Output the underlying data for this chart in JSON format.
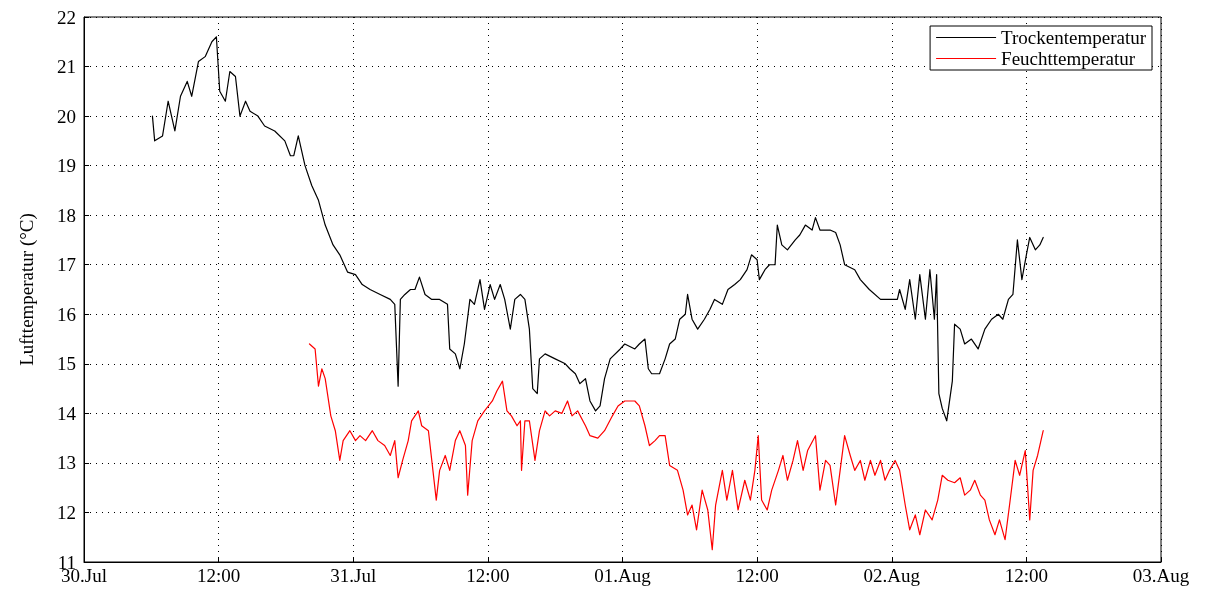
{
  "chart_data": {
    "type": "line",
    "ylabel": "Lufttemperatur (°C)",
    "xlim": [
      "--07-30T00:00",
      "--08-03T00:00"
    ],
    "ylim": [
      11,
      22
    ],
    "xticks": [
      {
        "value": "--07-30T00:00",
        "label": "30.Jul"
      },
      {
        "value": "--07-30T12:00",
        "label": "12:00"
      },
      {
        "value": "--07-31T00:00",
        "label": "31.Jul"
      },
      {
        "value": "--07-31T12:00",
        "label": "12:00"
      },
      {
        "value": "--08-01T00:00",
        "label": "01.Aug"
      },
      {
        "value": "--08-01T12:00",
        "label": "12:00"
      },
      {
        "value": "--08-02T00:00",
        "label": "02.Aug"
      },
      {
        "value": "--08-02T12:00",
        "label": "12:00"
      },
      {
        "value": "--08-03T00:00",
        "label": "03.Aug"
      }
    ],
    "yticks": [
      11,
      12,
      13,
      14,
      15,
      16,
      17,
      18,
      19,
      20,
      21,
      22
    ],
    "grid": true,
    "legend": "top right",
    "line_style": "solid",
    "marker": "none",
    "series": [
      {
        "name": "Trockentemperatur",
        "color": "#000000",
        "x": [
          "--07-30T06:06",
          "--07-30T06:18",
          "--07-30T07:00",
          "--07-30T07:30",
          "--07-30T08:06",
          "--07-30T08:36",
          "--07-30T09:12",
          "--07-30T09:36",
          "--07-30T10:12",
          "--07-30T10:48",
          "--07-30T11:24",
          "--07-30T11:48",
          "--07-30T12:06",
          "--07-30T12:36",
          "--07-30T13:00",
          "--07-30T13:30",
          "--07-30T13:54",
          "--07-30T14:24",
          "--07-30T14:48",
          "--07-30T15:30",
          "--07-30T16:06",
          "--07-30T17:00",
          "--07-30T17:54",
          "--07-30T18:24",
          "--07-30T18:42",
          "--07-30T19:06",
          "--07-30T19:42",
          "--07-30T20:18",
          "--07-30T20:54",
          "--07-30T21:30",
          "--07-30T22:12",
          "--07-30T22:48",
          "--07-30T23:30",
          "--07-31T00:12",
          "--07-31T00:48",
          "--07-31T01:30",
          "--07-31T02:24",
          "--07-31T03:18",
          "--07-31T03:42",
          "--07-31T04:00",
          "--07-31T04:12",
          "--07-31T04:36",
          "--07-31T05:06",
          "--07-31T05:30",
          "--07-31T05:54",
          "--07-31T06:24",
          "--07-31T07:00",
          "--07-31T07:42",
          "--07-31T08:24",
          "--07-31T08:36",
          "--07-31T09:06",
          "--07-31T09:30",
          "--07-31T09:54",
          "--07-31T10:24",
          "--07-31T10:48",
          "--07-31T11:18",
          "--07-31T11:42",
          "--07-31T12:12",
          "--07-31T12:36",
          "--07-31T13:06",
          "--07-31T13:30",
          "--07-31T14:00",
          "--07-31T14:24",
          "--07-31T14:54",
          "--07-31T15:18",
          "--07-31T15:42",
          "--07-31T16:00",
          "--07-31T16:24",
          "--07-31T16:36",
          "--07-31T17:06",
          "--07-31T18:00",
          "--07-31T18:54",
          "--07-31T19:18",
          "--07-31T19:48",
          "--07-31T20:12",
          "--07-31T20:42",
          "--07-31T21:06",
          "--07-31T21:36",
          "--07-31T22:00",
          "--07-31T22:24",
          "--07-31T22:54",
          "--07-31T23:48",
          "--08-01T00:12",
          "--08-01T01:06",
          "--08-01T01:30",
          "--08-01T02:00",
          "--08-01T02:18",
          "--08-01T02:36",
          "--08-01T03:18",
          "--08-01T03:48",
          "--08-01T04:12",
          "--08-01T04:42",
          "--08-01T05:06",
          "--08-01T05:36",
          "--08-01T05:48",
          "--08-01T06:12",
          "--08-01T06:42",
          "--08-01T07:18",
          "--08-01T07:48",
          "--08-01T08:12",
          "--08-01T08:54",
          "--08-01T09:24",
          "--08-01T10:00",
          "--08-01T10:30",
          "--08-01T11:06",
          "--08-01T11:30",
          "--08-01T12:00",
          "--08-01T12:12",
          "--08-01T12:42",
          "--08-01T13:06",
          "--08-01T13:36",
          "--08-01T13:48",
          "--08-01T14:12",
          "--08-01T14:42",
          "--08-01T15:24",
          "--08-01T15:48",
          "--08-01T16:18",
          "--08-01T16:54",
          "--08-01T17:12",
          "--08-01T17:36",
          "--08-01T18:30",
          "--08-01T19:00",
          "--08-01T19:24",
          "--08-01T19:48",
          "--08-01T20:42",
          "--08-01T21:12",
          "--08-01T22:00",
          "--08-01T23:00",
          "--08-01T23:48",
          "--08-02T00:30",
          "--08-02T00:42",
          "--08-02T01:12",
          "--08-02T01:36",
          "--08-02T02:06",
          "--08-02T02:30",
          "--08-02T03:00",
          "--08-02T03:24",
          "--08-02T03:48",
          "--08-02T04:00",
          "--08-02T04:12",
          "--08-02T04:30",
          "--08-02T04:54",
          "--08-02T05:24",
          "--08-02T05:36",
          "--08-02T06:06",
          "--08-02T06:30",
          "--08-02T07:06",
          "--08-02T07:42",
          "--08-02T08:18",
          "--08-02T08:54",
          "--08-02T09:30",
          "--08-02T09:54",
          "--08-02T10:24",
          "--08-02T10:48",
          "--08-02T11:12",
          "--08-02T11:36",
          "--08-02T12:00",
          "--08-02T12:18",
          "--08-02T12:48",
          "--08-02T13:12",
          "--08-02T13:30"
        ],
        "values": [
          20.0,
          19.5,
          19.6,
          20.3,
          19.7,
          20.4,
          20.7,
          20.4,
          21.1,
          21.2,
          21.5,
          21.6,
          20.5,
          20.3,
          20.9,
          20.8,
          20.0,
          20.3,
          20.1,
          20.0,
          19.8,
          19.7,
          19.5,
          19.2,
          19.2,
          19.6,
          19.0,
          18.6,
          18.3,
          17.8,
          17.4,
          17.2,
          16.85,
          16.8,
          16.6,
          16.5,
          16.4,
          16.3,
          16.2,
          14.55,
          16.3,
          16.4,
          16.5,
          16.5,
          16.75,
          16.4,
          16.3,
          16.3,
          16.2,
          15.3,
          15.2,
          14.9,
          15.4,
          16.3,
          16.2,
          16.7,
          16.1,
          16.6,
          16.3,
          16.6,
          16.3,
          15.7,
          16.3,
          16.4,
          16.3,
          15.7,
          14.5,
          14.4,
          15.1,
          15.2,
          15.1,
          15.0,
          14.9,
          14.8,
          14.6,
          14.7,
          14.25,
          14.05,
          14.15,
          14.7,
          15.1,
          15.3,
          15.4,
          15.3,
          15.4,
          15.5,
          14.9,
          14.8,
          14.8,
          15.1,
          15.4,
          15.5,
          15.9,
          16.0,
          16.4,
          15.9,
          15.7,
          15.9,
          16.1,
          16.3,
          16.2,
          16.5,
          16.6,
          16.7,
          16.9,
          17.2,
          17.1,
          16.7,
          16.9,
          17.0,
          17.0,
          17.8,
          17.4,
          17.3,
          17.5,
          17.6,
          17.8,
          17.7,
          17.95,
          17.7,
          17.7,
          17.65,
          17.4,
          17.0,
          16.9,
          16.7,
          16.5,
          16.3,
          16.3,
          16.3,
          16.5,
          16.1,
          16.7,
          15.9,
          16.8,
          15.9,
          16.9,
          15.9,
          16.8,
          14.4,
          14.1,
          13.85,
          14.65,
          15.8,
          15.7,
          15.4,
          15.5,
          15.3,
          15.7,
          15.9,
          16.0,
          15.9,
          16.3,
          16.4,
          17.5,
          16.7,
          17.2,
          17.55,
          17.3,
          17.4,
          17.55
        ]
      },
      {
        "name": "Feuchttemperatur",
        "color": "#ff0000",
        "x": [
          "--07-30T20:06",
          "--07-30T20:36",
          "--07-30T20:54",
          "--07-30T21:12",
          "--07-30T21:30",
          "--07-30T22:00",
          "--07-30T22:24",
          "--07-30T22:48",
          "--07-30T23:06",
          "--07-30T23:42",
          "--07-31T00:12",
          "--07-31T00:36",
          "--07-31T01:06",
          "--07-31T01:42",
          "--07-31T02:12",
          "--07-31T02:48",
          "--07-31T03:18",
          "--07-31T03:42",
          "--07-31T04:00",
          "--07-31T04:24",
          "--07-31T04:54",
          "--07-31T05:12",
          "--07-31T05:48",
          "--07-31T06:06",
          "--07-31T06:42",
          "--07-31T07:00",
          "--07-31T07:24",
          "--07-31T07:42",
          "--07-31T08:12",
          "--07-31T08:36",
          "--07-31T09:06",
          "--07-31T09:30",
          "--07-31T10:00",
          "--07-31T10:12",
          "--07-31T10:36",
          "--07-31T11:06",
          "--07-31T11:42",
          "--07-31T12:24",
          "--07-31T12:48",
          "--07-31T13:18",
          "--07-31T13:42",
          "--07-31T14:06",
          "--07-31T14:36",
          "--07-31T14:54",
          "--07-31T15:00",
          "--07-31T15:18",
          "--07-31T15:42",
          "--07-31T16:12",
          "--07-31T16:36",
          "--07-31T17:06",
          "--07-31T17:30",
          "--07-31T18:00",
          "--07-31T18:36",
          "--07-31T19:06",
          "--07-31T19:30",
          "--07-31T20:00",
          "--07-31T20:42",
          "--07-31T21:06",
          "--07-31T21:48",
          "--07-31T22:24",
          "--07-31T23:06",
          "--07-31T23:36",
          "--08-01T00:12",
          "--08-01T01:06",
          "--08-01T01:30",
          "--08-01T02:00",
          "--08-01T02:24",
          "--08-01T02:54",
          "--08-01T03:18",
          "--08-01T03:48",
          "--08-01T04:12",
          "--08-01T04:54",
          "--08-01T05:24",
          "--08-01T05:48",
          "--08-01T06:12",
          "--08-01T06:36",
          "--08-01T07:06",
          "--08-01T07:36",
          "--08-01T08:00",
          "--08-01T08:18",
          "--08-01T08:54",
          "--08-01T09:18",
          "--08-01T09:48",
          "--08-01T10:18",
          "--08-01T10:54",
          "--08-01T11:24",
          "--08-01T11:48",
          "--08-01T12:06",
          "--08-01T12:24",
          "--08-01T12:54",
          "--08-01T13:18",
          "--08-01T13:54",
          "--08-01T14:18",
          "--08-01T14:42",
          "--08-01T15:12",
          "--08-01T15:36",
          "--08-01T16:06",
          "--08-01T16:30",
          "--08-01T17:12",
          "--08-01T17:36",
          "--08-01T18:06",
          "--08-01T18:30",
          "--08-01T19:00",
          "--08-01T19:24",
          "--08-01T19:48",
          "--08-01T20:18",
          "--08-01T20:42",
          "--08-01T21:12",
          "--08-01T21:36",
          "--08-01T22:06",
          "--08-01T22:30",
          "--08-01T23:00",
          "--08-01T23:24",
          "--08-01T23:48",
          "--08-02T00:18",
          "--08-02T00:42",
          "--08-02T01:12",
          "--08-02T01:36",
          "--08-02T02:06",
          "--08-02T02:30",
          "--08-02T03:00",
          "--08-02T03:36",
          "--08-02T04:06",
          "--08-02T04:30",
          "--08-02T05:00",
          "--08-02T05:36",
          "--08-02T06:06",
          "--08-02T06:30",
          "--08-02T07:00",
          "--08-02T07:24",
          "--08-02T07:54",
          "--08-02T08:18",
          "--08-02T08:42",
          "--08-02T09:12",
          "--08-02T09:36",
          "--08-02T10:06",
          "--08-02T10:30",
          "--08-02T11:00",
          "--08-02T11:24",
          "--08-02T11:54",
          "--08-02T12:18",
          "--08-02T12:36",
          "--08-02T13:00",
          "--08-02T13:30"
        ],
        "values": [
          15.4,
          15.3,
          14.55,
          14.9,
          14.7,
          13.95,
          13.65,
          13.05,
          13.45,
          13.65,
          13.45,
          13.55,
          13.45,
          13.65,
          13.45,
          13.35,
          13.15,
          13.45,
          12.7,
          13.05,
          13.45,
          13.85,
          14.05,
          13.75,
          13.65,
          13.05,
          12.25,
          12.85,
          13.15,
          12.85,
          13.45,
          13.65,
          13.35,
          12.35,
          13.45,
          13.85,
          14.05,
          14.25,
          14.45,
          14.65,
          14.05,
          13.95,
          13.75,
          13.85,
          12.85,
          13.85,
          13.85,
          13.05,
          13.65,
          14.05,
          13.95,
          14.05,
          14.0,
          14.25,
          13.95,
          14.05,
          13.75,
          13.55,
          13.5,
          13.65,
          13.95,
          14.15,
          14.25,
          14.25,
          14.15,
          13.75,
          13.35,
          13.45,
          13.55,
          13.55,
          12.95,
          12.85,
          12.45,
          11.95,
          12.15,
          11.65,
          12.45,
          12.05,
          11.25,
          12.15,
          12.85,
          12.25,
          12.85,
          12.05,
          12.65,
          12.25,
          12.85,
          13.55,
          12.25,
          12.05,
          12.45,
          12.85,
          13.15,
          12.65,
          13.05,
          13.45,
          12.85,
          13.25,
          13.55,
          12.45,
          13.05,
          12.95,
          12.15,
          12.85,
          13.55,
          13.15,
          12.85,
          13.05,
          12.65,
          13.05,
          12.75,
          13.05,
          12.65,
          12.85,
          13.05,
          12.85,
          12.15,
          11.65,
          11.95,
          11.55,
          12.05,
          11.85,
          12.25,
          12.75,
          12.65,
          12.6,
          12.7,
          12.35,
          12.45,
          12.65,
          12.35,
          12.25,
          11.85,
          11.55,
          11.85,
          11.45,
          12.15,
          13.05,
          12.75,
          13.25,
          11.85,
          12.85,
          13.15,
          13.65
        ]
      }
    ]
  }
}
